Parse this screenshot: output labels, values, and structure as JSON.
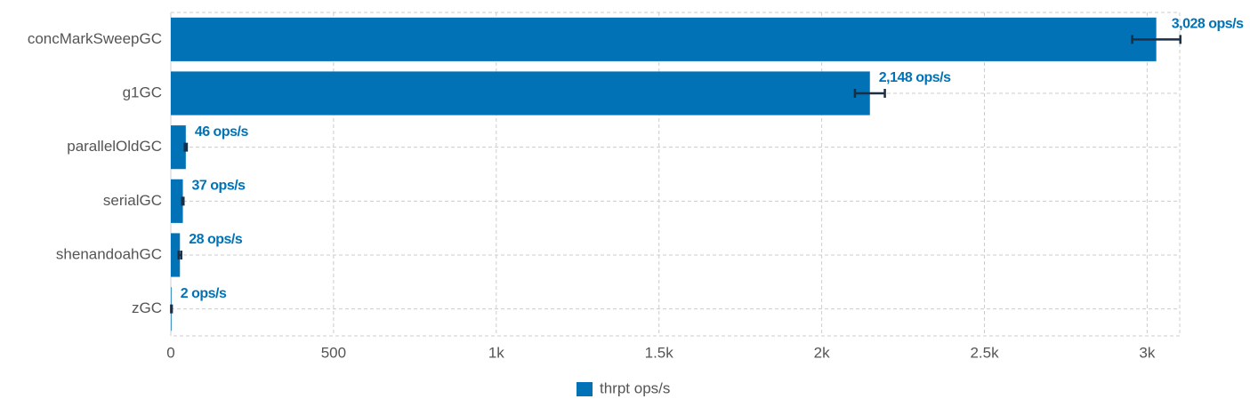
{
  "chart_data": {
    "type": "hbar",
    "categories": [
      "concMarkSweepGC",
      "g1GC",
      "parallelOldGC",
      "serialGC",
      "shenandoahGC",
      "zGC"
    ],
    "series": [
      {
        "name": "thrpt ops/s",
        "color": "#0072b5",
        "values": [
          3028,
          2148,
          46,
          37,
          28,
          2
        ],
        "errors": [
          74,
          46,
          3,
          2,
          4,
          1
        ],
        "value_labels": [
          "3,028 ops/s",
          "2,148 ops/s",
          "46 ops/s",
          "37 ops/s",
          "28 ops/s",
          "2 ops/s"
        ]
      }
    ],
    "xlim": [
      0,
      3100
    ],
    "xticks": [
      0,
      500,
      {
        "value": 1000,
        "label": "1k"
      },
      {
        "value": 1500,
        "label": "1.5k"
      },
      {
        "value": 2000,
        "label": "2k"
      },
      {
        "value": 2500,
        "label": "2.5k"
      },
      {
        "value": 3000,
        "label": "3k"
      }
    ],
    "grid": true,
    "legend": "bottom"
  }
}
